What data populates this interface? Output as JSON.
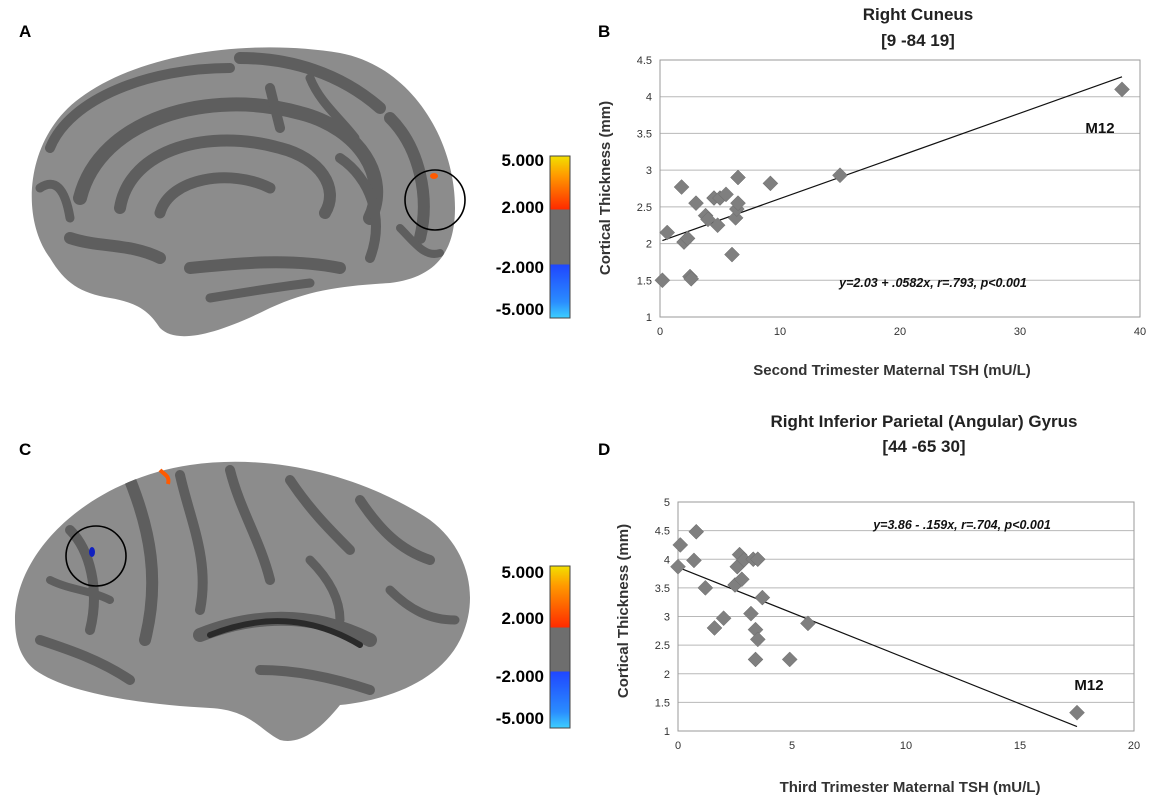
{
  "panels": {
    "a": "A",
    "b": "B",
    "c": "C",
    "d": "D"
  },
  "colorbar": {
    "labels": [
      "5.000",
      "2.000",
      "-2.000",
      "-5.000"
    ],
    "colors": {
      "yellow": "#f2e000",
      "orange": "#ff5a00",
      "red": "#ff2a00",
      "gray": "#6e6e6e",
      "blue": "#1f46ff",
      "cyan": "#3ccfff"
    }
  },
  "brain_colors": {
    "light_gray": "#8c8c8c",
    "dark_gray": "#5e5e5e",
    "orange_spot": "#ff5a00",
    "blue_spot": "#1020c0"
  },
  "chart_data": [
    {
      "type": "scatter",
      "title": "Right Cuneus",
      "subtitle": "[9 -84 19]",
      "xlabel": "Second Trimester Maternal TSH (mU/L)",
      "ylabel": "Cortical Thickness (mm)",
      "xlim": [
        0,
        40
      ],
      "ylim": [
        1,
        4.5
      ],
      "xticks": [
        0,
        10,
        20,
        30,
        40
      ],
      "yticks": [
        1,
        1.5,
        2,
        2.5,
        3,
        3.5,
        4,
        4.5
      ],
      "ytick_labels": [
        "1",
        "1.5",
        "2",
        "2.5",
        "3",
        "3.5",
        "4",
        "4.5"
      ],
      "grid": true,
      "x": [
        0.2,
        0.6,
        1.8,
        2.0,
        2.3,
        2.5,
        2.6,
        3.0,
        3.8,
        4.0,
        4.5,
        4.8,
        5.0,
        5.5,
        6.0,
        6.3,
        6.4,
        6.5,
        6.5,
        9.2,
        15.0,
        38.5
      ],
      "y": [
        1.5,
        2.15,
        2.77,
        2.02,
        2.07,
        1.55,
        1.52,
        2.55,
        2.38,
        2.33,
        2.62,
        2.25,
        2.62,
        2.67,
        1.85,
        2.35,
        2.47,
        2.55,
        2.9,
        2.82,
        2.93,
        4.1
      ],
      "fit": {
        "intercept": 2.03,
        "slope": 0.0582,
        "x_range": [
          0.2,
          38.5
        ]
      },
      "equation": "y=2.03 + .0582x, r=.793, p<0.001",
      "outlier_label": "M12"
    },
    {
      "type": "scatter",
      "title": "Right Inferior Parietal (Angular) Gyrus",
      "subtitle": "[44 -65 30]",
      "xlabel": "Third Trimester Maternal TSH (mU/L)",
      "ylabel": "Cortical Thickness (mm)",
      "xlim": [
        0,
        20
      ],
      "ylim": [
        1,
        5
      ],
      "xticks": [
        0,
        5,
        10,
        15,
        20
      ],
      "yticks": [
        1,
        1.5,
        2,
        2.5,
        3,
        3.5,
        4,
        4.5,
        5
      ],
      "ytick_labels": [
        "1",
        "1.5",
        "2",
        "2.5",
        "3",
        "3.5",
        "4",
        "4.5",
        "5"
      ],
      "grid": true,
      "x": [
        0.0,
        0.1,
        0.7,
        0.8,
        1.2,
        1.6,
        2.0,
        2.5,
        2.6,
        2.7,
        2.8,
        2.9,
        3.2,
        3.3,
        3.4,
        3.4,
        3.5,
        3.5,
        3.7,
        4.9,
        5.7,
        17.5
      ],
      "y": [
        3.87,
        4.25,
        3.98,
        4.48,
        3.5,
        2.8,
        2.97,
        3.55,
        3.87,
        4.08,
        3.65,
        3.99,
        3.05,
        4.0,
        2.77,
        2.25,
        2.6,
        4.0,
        3.33,
        2.25,
        2.88,
        1.32
      ],
      "fit": {
        "intercept": 3.86,
        "slope": -0.159,
        "x_range": [
          0.0,
          17.5
        ]
      },
      "equation": "y=3.86  - .159x, r=.704, p<0.001",
      "outlier_label": "M12"
    }
  ]
}
